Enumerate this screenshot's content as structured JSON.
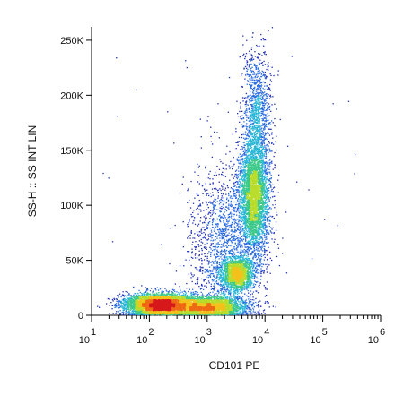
{
  "chart_data": {
    "type": "scatter",
    "style": "flow-cytometry density dot plot",
    "xlabel": "CD101 PE",
    "ylabel": "SS-H :: SS INT LIN",
    "x_scale": "log",
    "x_range": [
      10,
      1000000
    ],
    "x_ticks": [
      {
        "value": 10,
        "base": "10",
        "exp": "1"
      },
      {
        "value": 100,
        "base": "10",
        "exp": "2"
      },
      {
        "value": 1000,
        "base": "10",
        "exp": "3"
      },
      {
        "value": 10000,
        "base": "10",
        "exp": "4"
      },
      {
        "value": 100000,
        "base": "10",
        "exp": "5"
      },
      {
        "value": 1000000,
        "base": "10",
        "exp": "6"
      }
    ],
    "y_scale": "linear",
    "y_range": [
      0,
      262144
    ],
    "y_ticks": [
      {
        "value": 0,
        "label": "0"
      },
      {
        "value": 50000,
        "label": "50K"
      },
      {
        "value": 100000,
        "label": "100K"
      },
      {
        "value": 150000,
        "label": "150K"
      },
      {
        "value": 200000,
        "label": "200K"
      },
      {
        "value": 250000,
        "label": "250K"
      }
    ],
    "grid": false,
    "legend": "none",
    "density_colors": [
      "#1f2fb5",
      "#2a6be0",
      "#29b6d6",
      "#3cc98a",
      "#b9dc2c",
      "#f3c21b",
      "#ef6a16",
      "#d7191c"
    ],
    "populations": [
      {
        "x_log_center": 2.15,
        "x_log_sd": 0.3,
        "y_center": 10000,
        "y_sd": 5000,
        "relative_count": 4200
      },
      {
        "x_log_center": 3.0,
        "x_log_sd": 0.35,
        "y_center": 8000,
        "y_sd": 5000,
        "relative_count": 3200
      },
      {
        "x_log_center": 3.5,
        "x_log_sd": 0.14,
        "y_center": 38000,
        "y_sd": 8000,
        "relative_count": 1700
      },
      {
        "x_log_center": 3.8,
        "x_log_sd": 0.13,
        "y_center": 110000,
        "y_sd": 28000,
        "relative_count": 3800
      },
      {
        "x_log_center": 3.85,
        "x_log_sd": 0.12,
        "y_center": 190000,
        "y_sd": 28000,
        "relative_count": 1000
      },
      {
        "x_log_center": 3.3,
        "x_log_sd": 0.33,
        "y_center": 65000,
        "y_sd": 35000,
        "relative_count": 1500
      }
    ]
  }
}
